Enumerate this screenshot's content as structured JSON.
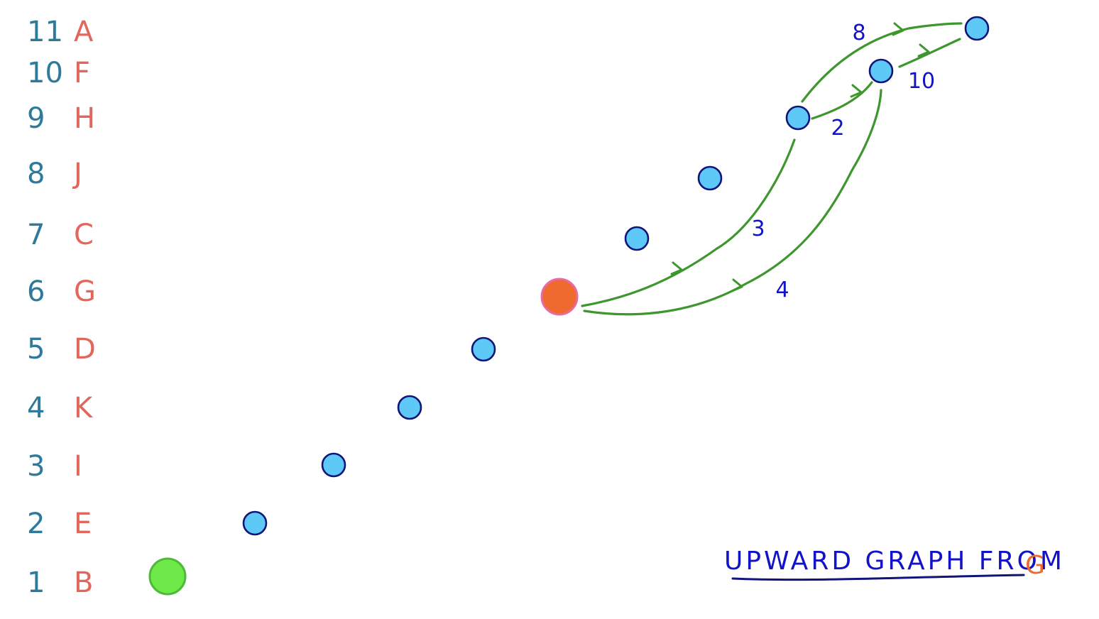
{
  "rank_rows": [
    {
      "rank": "11",
      "letter": "A"
    },
    {
      "rank": "10",
      "letter": "F"
    },
    {
      "rank": "9",
      "letter": "H"
    },
    {
      "rank": "8",
      "letter": "J"
    },
    {
      "rank": "7",
      "letter": "C"
    },
    {
      "rank": "6",
      "letter": "G"
    },
    {
      "rank": "5",
      "letter": "D"
    },
    {
      "rank": "4",
      "letter": "K"
    },
    {
      "rank": "3",
      "letter": "I"
    },
    {
      "rank": "2",
      "letter": "E"
    },
    {
      "rank": "1",
      "letter": "B"
    }
  ],
  "nodes": [
    {
      "letter": "B",
      "rank": 1,
      "color": "#6fe84a",
      "stroke": "#4db83a"
    },
    {
      "letter": "E",
      "rank": 2,
      "color": "#5ec8f7",
      "stroke": "#10157a"
    },
    {
      "letter": "I",
      "rank": 3,
      "color": "#5ec8f7",
      "stroke": "#10157a"
    },
    {
      "letter": "K",
      "rank": 4,
      "color": "#5ec8f7",
      "stroke": "#10157a"
    },
    {
      "letter": "D",
      "rank": 5,
      "color": "#5ec8f7",
      "stroke": "#10157a"
    },
    {
      "letter": "G",
      "rank": 6,
      "color": "#ef6a2e",
      "stroke": "#e86aa0"
    },
    {
      "letter": "C",
      "rank": 7,
      "color": "#5ec8f7",
      "stroke": "#10157a"
    },
    {
      "letter": "J",
      "rank": 8,
      "color": "#5ec8f7",
      "stroke": "#10157a"
    },
    {
      "letter": "H",
      "rank": 9,
      "color": "#5ec8f7",
      "stroke": "#10157a"
    },
    {
      "letter": "F",
      "rank": 10,
      "color": "#5ec8f7",
      "stroke": "#10157a"
    },
    {
      "letter": "A",
      "rank": 11,
      "color": "#5ec8f7",
      "stroke": "#10157a"
    }
  ],
  "edges": [
    {
      "from": "G",
      "to": "H",
      "weight": "3"
    },
    {
      "from": "G",
      "to": "F",
      "weight": "4"
    },
    {
      "from": "H",
      "to": "F",
      "weight": "2"
    },
    {
      "from": "H",
      "to": "A",
      "weight": "8"
    },
    {
      "from": "F",
      "to": "A",
      "weight": "10"
    }
  ],
  "title": {
    "text": "UPWARD GRAPH FROM",
    "highlight": "G"
  },
  "colors": {
    "rank_number": "#2e7a9a",
    "rank_letter": "#e2665c",
    "edge": "#3e962e",
    "weight": "#1212c8",
    "title": "#1212c8",
    "highlight": "#ef6a2e"
  }
}
